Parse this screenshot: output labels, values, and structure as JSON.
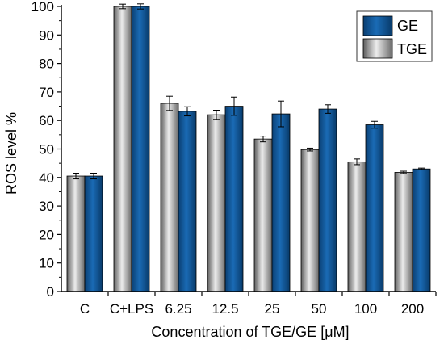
{
  "chart_data": {
    "type": "bar",
    "categories": [
      "C",
      "C+LPS",
      "6.25",
      "12.5",
      "25",
      "50",
      "100",
      "200"
    ],
    "series": [
      {
        "name": "TGE",
        "values": [
          40.5,
          100,
          66,
          62,
          53.5,
          49.8,
          45.5,
          41.8
        ],
        "errors": [
          1.0,
          0.8,
          2.5,
          1.6,
          1.0,
          0.5,
          1.0,
          0.4
        ],
        "color": "#9a9a9a"
      },
      {
        "name": "GE",
        "values": [
          40.5,
          100,
          63.2,
          65,
          62.3,
          64,
          58.5,
          43
        ],
        "errors": [
          1.0,
          0.9,
          1.6,
          3.2,
          4.5,
          1.5,
          1.2,
          0.3
        ],
        "color": "#0d5496"
      }
    ],
    "xlabel": "Concentration of TGE/GE [μM]",
    "ylabel": "ROS level %",
    "ylim": [
      0,
      100
    ],
    "yticks": [
      "0",
      "10",
      "20",
      "30",
      "40",
      "50",
      "60",
      "70",
      "80",
      "90",
      "100"
    ],
    "grid": false,
    "legend_position": "top-right"
  }
}
